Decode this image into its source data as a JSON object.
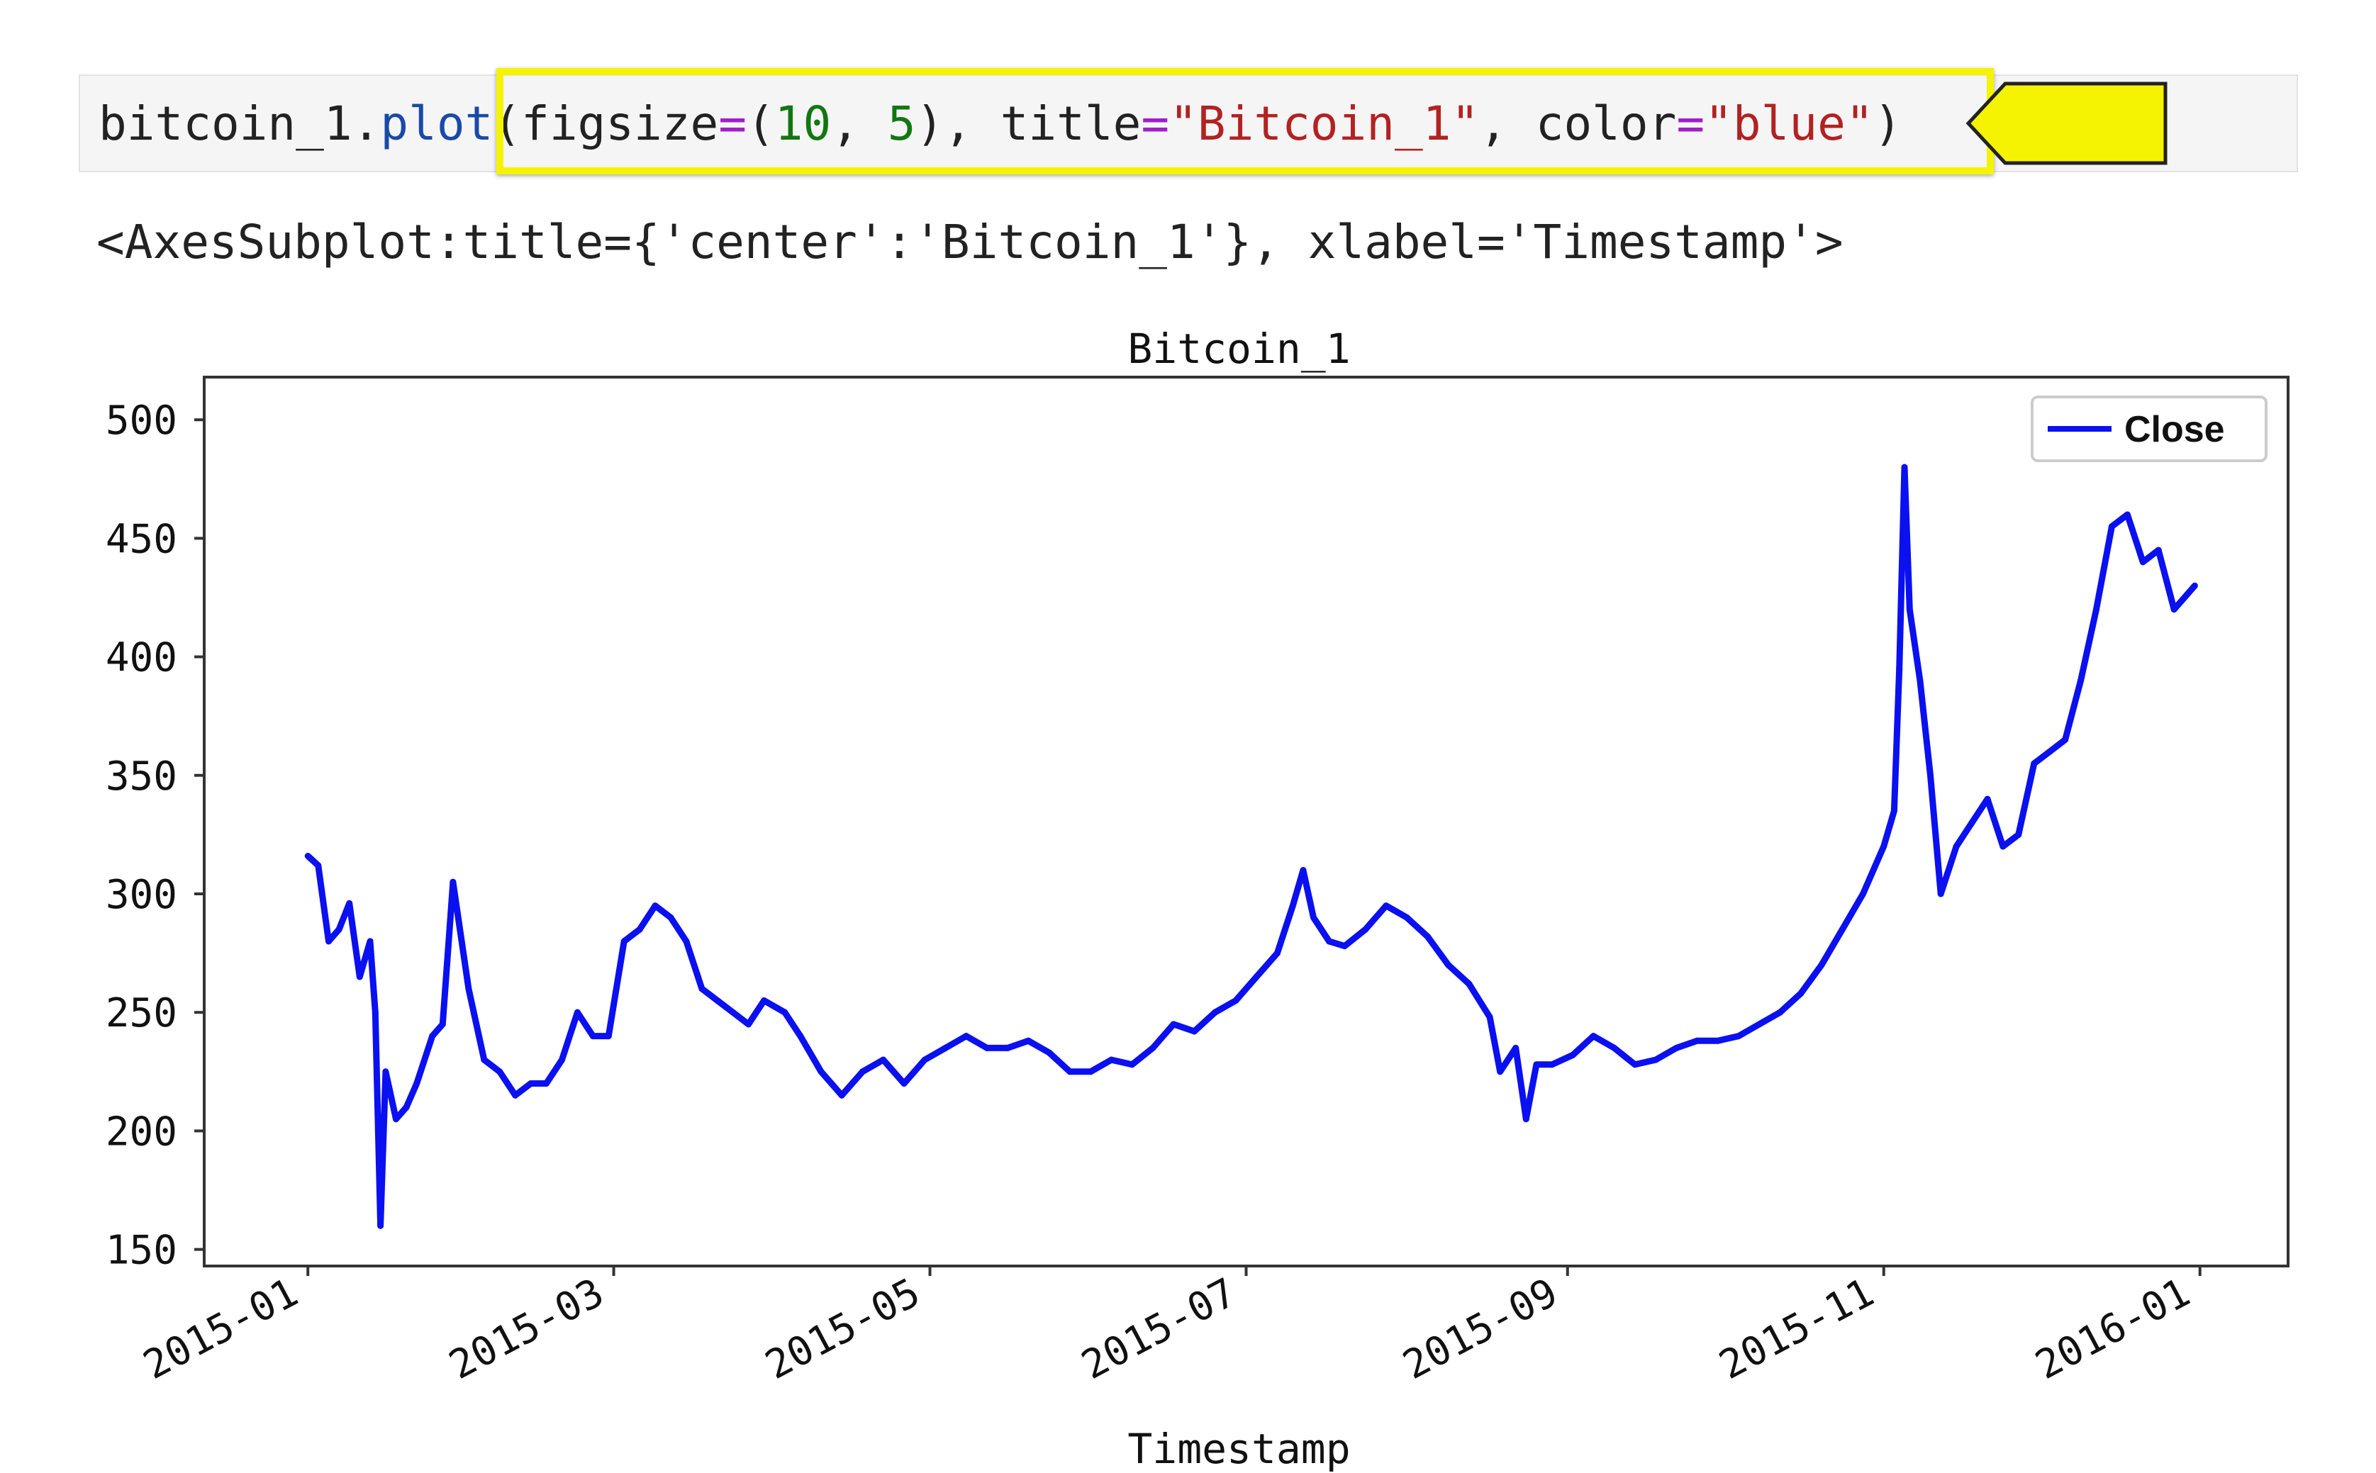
{
  "code": {
    "object": "bitcoin_1",
    "dot": ".",
    "method": "plot",
    "open_paren": "(",
    "kw_figsize": "figsize",
    "eq1": "=",
    "tuple_open": "(",
    "num1": "10",
    "comma_sp1": ", ",
    "num2": "5",
    "tuple_close": ")",
    "comma_sp2": ", ",
    "kw_title": "title",
    "eq2": "=",
    "title_str": "\"Bitcoin_1\"",
    "comma_sp3": ", ",
    "kw_color": "color",
    "eq3": "=",
    "color_str": "\"blue\"",
    "close_paren": ")"
  },
  "output_repr": "<AxesSubplot:title={'center':'Bitcoin_1'}, xlabel='Timestamp'>",
  "colors": {
    "highlight": "#f6f300",
    "line": "#0a10f0",
    "code_bg": "#f5f5f5"
  },
  "chart_data": {
    "type": "line",
    "title": "Bitcoin_1",
    "xlabel": "Timestamp",
    "ylabel": "",
    "ylim": [
      143,
      518
    ],
    "yticks": [
      150,
      200,
      250,
      300,
      350,
      400,
      450,
      500
    ],
    "xlim": [
      "2014-12-12",
      "2016-01-18"
    ],
    "xticks": [
      "2015-01",
      "2015-03",
      "2015-05",
      "2015-07",
      "2015-09",
      "2015-11",
      "2016-01"
    ],
    "xtick_dates": [
      "2015-01-01",
      "2015-03-01",
      "2015-05-01",
      "2015-07-01",
      "2015-09-01",
      "2015-11-01",
      "2016-01-01"
    ],
    "legend": {
      "position": "upper-right",
      "entries": [
        "Close"
      ]
    },
    "grid": false,
    "series": [
      {
        "name": "Close",
        "color": "#0a10f0",
        "x": [
          "2015-01-01",
          "2015-01-03",
          "2015-01-05",
          "2015-01-07",
          "2015-01-09",
          "2015-01-11",
          "2015-01-13",
          "2015-01-14",
          "2015-01-15",
          "2015-01-16",
          "2015-01-18",
          "2015-01-20",
          "2015-01-22",
          "2015-01-25",
          "2015-01-27",
          "2015-01-29",
          "2015-02-01",
          "2015-02-04",
          "2015-02-07",
          "2015-02-10",
          "2015-02-13",
          "2015-02-16",
          "2015-02-19",
          "2015-02-22",
          "2015-02-25",
          "2015-02-28",
          "2015-03-03",
          "2015-03-06",
          "2015-03-09",
          "2015-03-12",
          "2015-03-15",
          "2015-03-18",
          "2015-03-21",
          "2015-03-24",
          "2015-03-27",
          "2015-03-30",
          "2015-04-03",
          "2015-04-06",
          "2015-04-10",
          "2015-04-14",
          "2015-04-18",
          "2015-04-22",
          "2015-04-26",
          "2015-04-30",
          "2015-05-04",
          "2015-05-08",
          "2015-05-12",
          "2015-05-16",
          "2015-05-20",
          "2015-05-24",
          "2015-05-28",
          "2015-06-01",
          "2015-06-05",
          "2015-06-09",
          "2015-06-13",
          "2015-06-17",
          "2015-06-21",
          "2015-06-25",
          "2015-06-29",
          "2015-07-03",
          "2015-07-07",
          "2015-07-10",
          "2015-07-12",
          "2015-07-14",
          "2015-07-17",
          "2015-07-20",
          "2015-07-24",
          "2015-07-28",
          "2015-08-01",
          "2015-08-05",
          "2015-08-09",
          "2015-08-13",
          "2015-08-17",
          "2015-08-19",
          "2015-08-22",
          "2015-08-24",
          "2015-08-26",
          "2015-08-29",
          "2015-09-02",
          "2015-09-06",
          "2015-09-10",
          "2015-09-14",
          "2015-09-18",
          "2015-09-22",
          "2015-09-26",
          "2015-09-30",
          "2015-10-04",
          "2015-10-08",
          "2015-10-12",
          "2015-10-16",
          "2015-10-20",
          "2015-10-24",
          "2015-10-28",
          "2015-11-01",
          "2015-11-03",
          "2015-11-04",
          "2015-11-05",
          "2015-11-06",
          "2015-11-08",
          "2015-11-10",
          "2015-11-12",
          "2015-11-15",
          "2015-11-18",
          "2015-11-21",
          "2015-11-24",
          "2015-11-27",
          "2015-11-30",
          "2015-12-03",
          "2015-12-06",
          "2015-12-09",
          "2015-12-12",
          "2015-12-15",
          "2015-12-18",
          "2015-12-21",
          "2015-12-24",
          "2015-12-27",
          "2015-12-31"
        ],
        "y": [
          316,
          312,
          280,
          285,
          296,
          265,
          280,
          250,
          160,
          225,
          205,
          210,
          220,
          240,
          245,
          305,
          260,
          230,
          225,
          215,
          220,
          220,
          230,
          250,
          240,
          240,
          280,
          285,
          295,
          290,
          280,
          260,
          255,
          250,
          245,
          255,
          250,
          240,
          225,
          215,
          225,
          230,
          220,
          230,
          235,
          240,
          235,
          235,
          238,
          233,
          225,
          225,
          230,
          228,
          235,
          245,
          242,
          250,
          255,
          265,
          275,
          295,
          310,
          290,
          280,
          278,
          285,
          295,
          290,
          282,
          270,
          262,
          248,
          225,
          235,
          205,
          228,
          228,
          232,
          240,
          235,
          228,
          230,
          235,
          238,
          238,
          240,
          245,
          250,
          258,
          270,
          285,
          300,
          320,
          335,
          395,
          480,
          420,
          390,
          350,
          300,
          320,
          330,
          340,
          320,
          325,
          355,
          360,
          365,
          390,
          420,
          455,
          460,
          440,
          445,
          420,
          430
        ]
      }
    ]
  }
}
